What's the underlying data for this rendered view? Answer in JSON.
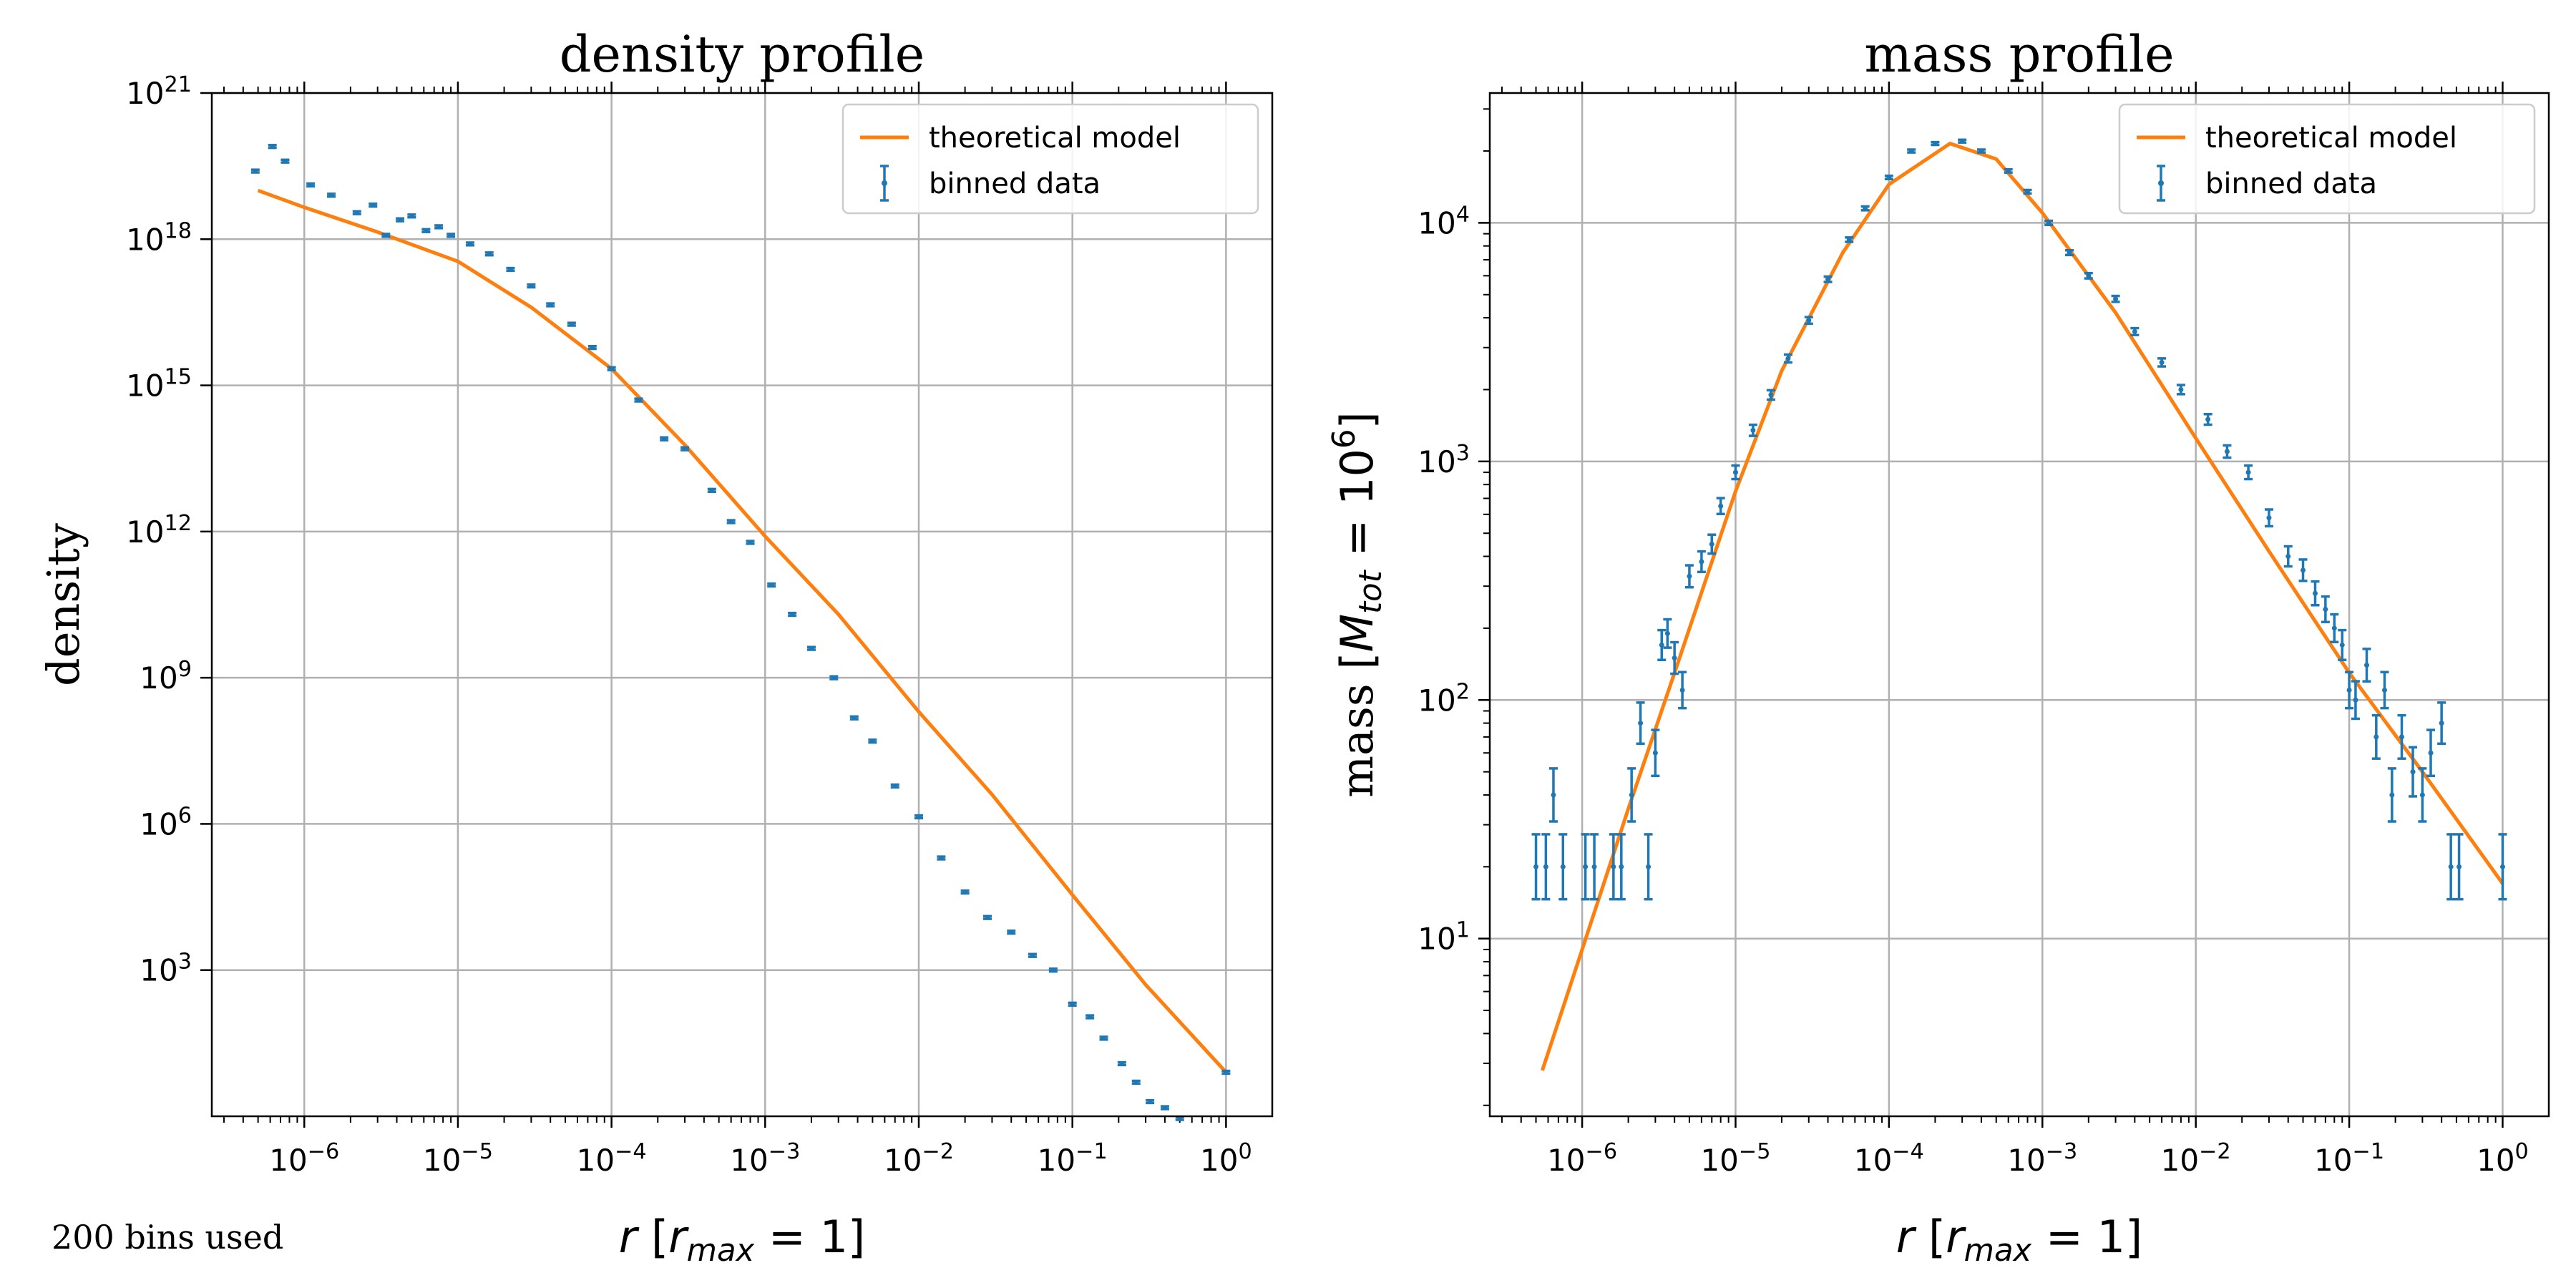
{
  "footer_note": "200 bins used",
  "colors": {
    "model": "#ff7f0e",
    "data": "#1f77b4",
    "grid": "#b0b0b0"
  },
  "chart_data": [
    {
      "type": "scatter",
      "title": "density profile",
      "xlabel": "r [r_max = 1]",
      "ylabel": "density",
      "xscale": "log",
      "yscale": "log",
      "xlim": [
        2.5e-07,
        2.0
      ],
      "ylim": [
        1.0,
        1e+21
      ],
      "xticks": [
        1e-06,
        1e-05,
        0.0001,
        0.001,
        0.01,
        0.1,
        1
      ],
      "xtick_exponents": [
        "-6",
        "-5",
        "-4",
        "-3",
        "-2",
        "-1",
        "0"
      ],
      "yticks": [
        1000.0,
        1000000.0,
        1000000000.0,
        1000000000000.0,
        1000000000000000.0,
        1e+18,
        1e+21
      ],
      "ytick_exponents": [
        "3",
        "6",
        "9",
        "12",
        "15",
        "18",
        "21"
      ],
      "grid": true,
      "legend": "top-right",
      "series": [
        {
          "name": "theoretical model",
          "kind": "line",
          "x": [
            5e-07,
            1e-06,
            3e-06,
            1e-05,
            3e-05,
            0.0001,
            0.0003,
            0.001,
            0.003,
            0.01,
            0.03,
            0.1,
            0.3,
            1
          ],
          "y": [
            1e+19,
            4.5e+18,
            1.4e+18,
            3.5e+17,
            4e+16,
            2200000000000000.0,
            60000000000000.0,
            800000000000.0,
            20000000000.0,
            200000000.0,
            4000000.0,
            35000.0,
            500.0,
            8
          ]
        },
        {
          "name": "binned data",
          "kind": "errorbar",
          "x": [
            4.8e-07,
            6.2e-07,
            7.5e-07,
            1.1e-06,
            1.5e-06,
            2.2e-06,
            2.8e-06,
            3.4e-06,
            4.2e-06,
            5e-06,
            6.2e-06,
            7.5e-06,
            9e-06,
            1.2e-05,
            1.6e-05,
            2.2e-05,
            3e-05,
            4e-05,
            5.5e-05,
            7.5e-05,
            0.0001,
            0.00015,
            0.00022,
            0.0003,
            0.00045,
            0.0006,
            0.0008,
            0.0011,
            0.0015,
            0.002,
            0.0028,
            0.0038,
            0.005,
            0.007,
            0.01,
            0.014,
            0.02,
            0.028,
            0.04,
            0.055,
            0.075,
            0.1,
            0.13,
            0.16,
            0.21,
            0.26,
            0.32,
            0.4,
            0.5,
            1
          ],
          "y": [
            2.5e+19,
            8e+19,
            4e+19,
            1.3e+19,
            8e+18,
            3.5e+18,
            5e+18,
            1.2e+18,
            2.5e+18,
            3e+18,
            1.5e+18,
            1.8e+18,
            1.2e+18,
            8e+17,
            5e+17,
            2.4e+17,
            1.1e+17,
            4.5e+16,
            1.8e+16,
            6000000000000000.0,
            2200000000000000.0,
            500000000000000.0,
            80000000000000.0,
            50000000000000.0,
            7000000000000.0,
            1600000000000.0,
            600000000000.0,
            80000000000.0,
            20000000000.0,
            4000000000.0,
            1000000000.0,
            150000000.0,
            50000000.0,
            6000000.0,
            1400000.0,
            200000.0,
            40000.0,
            12000.0,
            6000.0,
            2000.0,
            1000.0,
            200.0,
            110.0,
            40,
            12,
            5,
            2,
            1.5,
            0.9,
            8
          ]
        }
      ]
    },
    {
      "type": "scatter",
      "title": "mass profile",
      "xlabel": "r [r_max = 1]",
      "ylabel": "mass [M_tot = 10^6]",
      "xscale": "log",
      "yscale": "log",
      "xlim": [
        2.5e-07,
        2.0
      ],
      "ylim": [
        1.8,
        35000
      ],
      "xticks": [
        1e-06,
        1e-05,
        0.0001,
        0.001,
        0.01,
        0.1,
        1
      ],
      "xtick_exponents": [
        "-6",
        "-5",
        "-4",
        "-3",
        "-2",
        "-1",
        "0"
      ],
      "yticks": [
        10,
        100,
        1000,
        10000
      ],
      "ytick_exponents": [
        "1",
        "2",
        "3",
        "4"
      ],
      "grid": true,
      "legend": "top-right",
      "series": [
        {
          "name": "theoretical model",
          "kind": "line",
          "x": [
            5.5e-07,
            1e-06,
            2e-06,
            4e-06,
            1e-05,
            2e-05,
            5e-05,
            0.0001,
            0.00025,
            0.0005,
            0.001,
            0.003,
            0.01,
            0.03,
            0.1,
            0.3,
            1
          ],
          "y": [
            2.8,
            9,
            35,
            130,
            750,
            2400,
            7500,
            14500,
            21500,
            18500,
            11000,
            4200,
            1250,
            420,
            130,
            50,
            17
          ]
        },
        {
          "name": "binned data",
          "kind": "errorbar",
          "x": [
            5e-07,
            5.8e-07,
            6.5e-07,
            7.5e-07,
            1.05e-06,
            1.2e-06,
            1.6e-06,
            1.8e-06,
            2.1e-06,
            2.4e-06,
            2.7e-06,
            3e-06,
            3.3e-06,
            3.6e-06,
            4e-06,
            4.5e-06,
            5e-06,
            6e-06,
            7e-06,
            8e-06,
            1e-05,
            1.3e-05,
            1.7e-05,
            2.2e-05,
            3e-05,
            4e-05,
            5.5e-05,
            7e-05,
            0.0001,
            0.00014,
            0.0002,
            0.0003,
            0.0004,
            0.0006,
            0.0008,
            0.0011,
            0.0015,
            0.002,
            0.003,
            0.004,
            0.006,
            0.008,
            0.012,
            0.016,
            0.022,
            0.03,
            0.04,
            0.05,
            0.06,
            0.07,
            0.08,
            0.09,
            0.1,
            0.11,
            0.13,
            0.15,
            0.17,
            0.19,
            0.22,
            0.26,
            0.3,
            0.34,
            0.4,
            0.46,
            0.52,
            1
          ],
          "y": [
            20,
            20,
            40,
            20,
            20,
            20,
            20,
            20,
            40,
            80,
            20,
            60,
            170,
            190,
            150,
            110,
            330,
            380,
            450,
            650,
            900,
            1350,
            1900,
            2700,
            3900,
            5800,
            8500,
            11500,
            15500,
            20000,
            21500,
            22000,
            20000,
            16500,
            13500,
            10000,
            7500,
            6000,
            4800,
            3500,
            2600,
            2000,
            1500,
            1100,
            900,
            580,
            400,
            350,
            280,
            240,
            200,
            170,
            110,
            100,
            140,
            70,
            110,
            40,
            70,
            50,
            40,
            60,
            80,
            20,
            20,
            20
          ]
        }
      ]
    }
  ]
}
